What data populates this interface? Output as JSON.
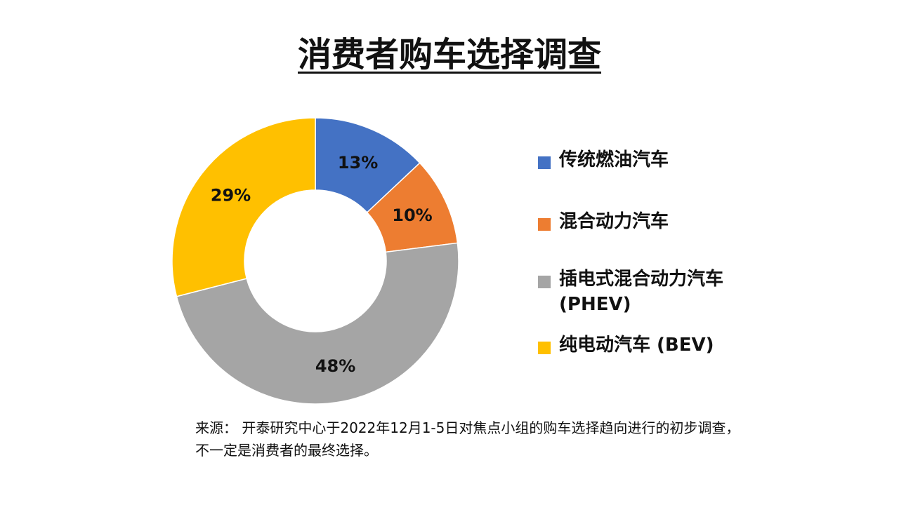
{
  "slide": {
    "title": "消费者购车选择调查",
    "source": "来源： 开泰研究中心于2022年12月1-5日对焦点小组的购车选择趋向进行的初步调查，不一定是消费者的最终选择。"
  },
  "chart_data": {
    "type": "pie",
    "variant": "doughnut",
    "title": "消费者购车选择调查",
    "legend_position": "right",
    "categories": [
      "传统燃油汽车",
      "混合动力汽车",
      "插电式混合动力汽车 (PHEV)",
      "纯电动汽车 (BEV)"
    ],
    "values": [
      13,
      10,
      48,
      29
    ],
    "labels": [
      "13%",
      "10%",
      "48%",
      "29%"
    ],
    "colors": [
      "#4472C4",
      "#ED7D31",
      "#A5A5A5",
      "#FFC000"
    ]
  }
}
